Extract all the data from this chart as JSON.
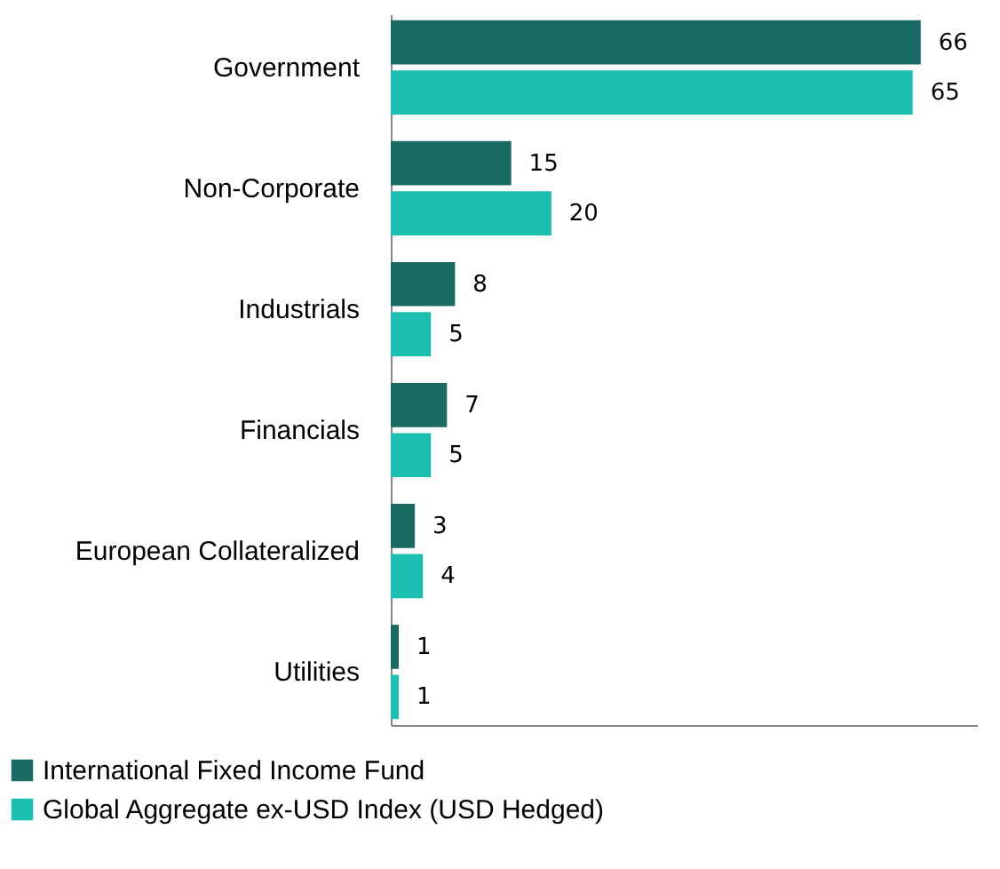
{
  "chart_data": {
    "type": "bar",
    "orientation": "horizontal",
    "categories": [
      "Government",
      "Non-Corporate",
      "Industrials",
      "Financials",
      "European Collateralized",
      "Utilities"
    ],
    "series": [
      {
        "name": "International Fixed Income Fund",
        "color": "#1a6b63",
        "values": [
          66,
          15,
          8,
          7,
          3,
          1
        ]
      },
      {
        "name": "Global Aggregate ex-USD Index (USD Hedged)",
        "color": "#1bbfb0",
        "values": [
          65,
          20,
          5,
          5,
          4,
          1
        ]
      }
    ],
    "xlim": [
      0,
      73
    ],
    "data_labels": true,
    "legend": "bottom"
  }
}
